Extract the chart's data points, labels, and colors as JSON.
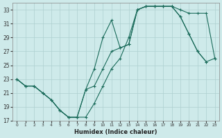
{
  "xlabel": "Humidex (Indice chaleur)",
  "bg_color": "#ceeaea",
  "grid_color": "#aed0d0",
  "line_color": "#1a6b5a",
  "xlim": [
    -0.5,
    23.5
  ],
  "ylim": [
    17,
    34
  ],
  "xticks": [
    0,
    1,
    2,
    3,
    4,
    5,
    6,
    7,
    8,
    9,
    10,
    11,
    12,
    13,
    14,
    15,
    16,
    17,
    18,
    19,
    20,
    21,
    22,
    23
  ],
  "yticks": [
    17,
    19,
    21,
    23,
    25,
    27,
    29,
    31,
    33
  ],
  "lines": [
    {
      "x": [
        0,
        1,
        2,
        3,
        4,
        5,
        6,
        7,
        8,
        9,
        10,
        11,
        12,
        13,
        14,
        15,
        16,
        17,
        18,
        19,
        20,
        21,
        22,
        23
      ],
      "y": [
        23,
        22,
        22,
        21,
        20,
        18.5,
        17.5,
        17.5,
        17.5,
        19.5,
        22,
        24.5,
        26,
        29,
        33,
        33.5,
        33.5,
        33.5,
        33.5,
        33,
        32.5,
        32.5,
        32.5,
        26
      ]
    },
    {
      "x": [
        0,
        1,
        2,
        3,
        4,
        5,
        6,
        7,
        8,
        9,
        10,
        11,
        12,
        13,
        14,
        15,
        16,
        17,
        18,
        19,
        20,
        21,
        22
      ],
      "y": [
        23,
        22,
        22,
        21,
        20,
        18.5,
        17.5,
        17.5,
        21.5,
        24.5,
        29,
        31.5,
        27.5,
        28,
        33,
        33.5,
        33.5,
        33.5,
        33.5,
        32,
        29.5,
        27,
        25.5
      ]
    },
    {
      "x": [
        0,
        1,
        2,
        3,
        4,
        5,
        6,
        7,
        8,
        9,
        10,
        11,
        12,
        13,
        14,
        15,
        16,
        17,
        18,
        19,
        20,
        21,
        22,
        23
      ],
      "y": [
        23,
        22,
        22,
        21,
        20,
        18.5,
        17.5,
        17.5,
        21.5,
        22,
        24.5,
        27,
        27.5,
        28,
        33,
        33.5,
        33.5,
        33.5,
        33.5,
        32,
        29.5,
        27,
        25.5,
        26
      ]
    }
  ]
}
